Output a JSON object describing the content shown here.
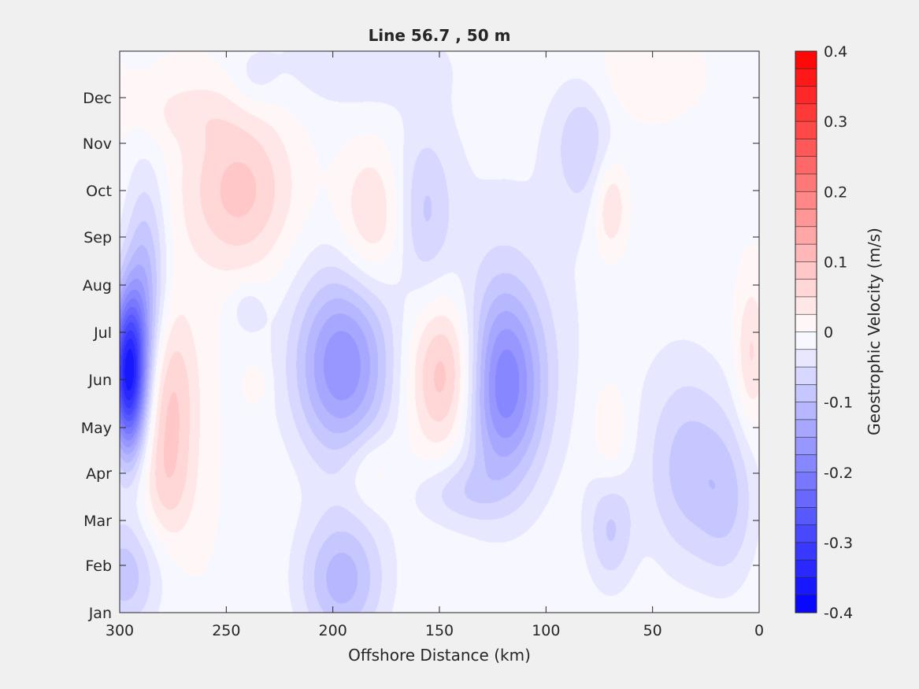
{
  "chart_data": {
    "type": "heatmap",
    "subtype": "filled-contour",
    "title": "Line 56.7 , 50 m",
    "xlabel": "Offshore Distance (km)",
    "ylabel": "",
    "xlim": [
      300,
      0
    ],
    "x_reversed": true,
    "x_ticks": [
      "300",
      "250",
      "200",
      "150",
      "100",
      "50",
      "0"
    ],
    "y_categories": [
      "Jan",
      "Feb",
      "Mar",
      "Apr",
      "May",
      "Jun",
      "Jul",
      "Aug",
      "Sep",
      "Oct",
      "Nov",
      "Dec"
    ],
    "y_ticks": [
      "Jan",
      "Feb",
      "Mar",
      "Apr",
      "May",
      "Jun",
      "Jul",
      "Aug",
      "Sep",
      "Oct",
      "Nov",
      "Dec"
    ],
    "colorbar": {
      "label": "Geostrophic Velocity (m/s)",
      "min": -0.4,
      "max": 0.4,
      "step": 0.025,
      "ticks": [
        "0.4",
        "0.3",
        "0.2",
        "0.1",
        "0",
        "-0.1",
        "-0.2",
        "-0.3",
        "-0.4"
      ],
      "colormap": "blue-white-red",
      "low_color": "#0000ff",
      "high_color": "#ff0000"
    },
    "features": [
      {
        "x": 296,
        "month": 5.1,
        "sx": 6,
        "smo": 1.2,
        "value": -0.35
      },
      {
        "x": 288,
        "month": 6.8,
        "sx": 7,
        "smo": 1.8,
        "value": -0.11
      },
      {
        "x": 278,
        "month": 4.6,
        "sx": 10,
        "smo": 1.4,
        "value": 0.09
      },
      {
        "x": 278,
        "month": 2.6,
        "sx": 9,
        "smo": 0.9,
        "value": 0.04
      },
      {
        "x": 244,
        "month": 9.0,
        "sx": 18,
        "smo": 1.2,
        "value": 0.09
      },
      {
        "x": 270,
        "month": 10.7,
        "sx": 20,
        "smo": 0.5,
        "value": 0.03
      },
      {
        "x": 298,
        "month": 0.8,
        "sx": 12,
        "smo": 0.9,
        "value": -0.09
      },
      {
        "x": 196,
        "month": 5.3,
        "sx": 16,
        "smo": 1.4,
        "value": -0.16
      },
      {
        "x": 146,
        "month": 5.1,
        "sx": 13,
        "smo": 1.2,
        "value": 0.13
      },
      {
        "x": 121,
        "month": 4.9,
        "sx": 14,
        "smo": 1.5,
        "value": -0.19
      },
      {
        "x": 182,
        "month": 8.4,
        "sx": 11,
        "smo": 1.1,
        "value": 0.07
      },
      {
        "x": 157,
        "month": 8.6,
        "sx": 9,
        "smo": 1.2,
        "value": -0.06
      },
      {
        "x": 196,
        "month": 0.7,
        "sx": 14,
        "smo": 1.0,
        "value": -0.11
      },
      {
        "x": 142,
        "month": 2.6,
        "sx": 14,
        "smo": 0.5,
        "value": -0.05
      },
      {
        "x": 70,
        "month": 1.8,
        "sx": 8,
        "smo": 0.9,
        "value": -0.07
      },
      {
        "x": 70,
        "month": 8.7,
        "sx": 6,
        "smo": 0.8,
        "value": 0.07
      },
      {
        "x": 70,
        "month": 3.9,
        "sx": 6,
        "smo": 0.8,
        "value": 0.04
      },
      {
        "x": 82,
        "month": 10.0,
        "sx": 10,
        "smo": 1.0,
        "value": -0.06
      },
      {
        "x": 34,
        "month": 3.1,
        "sx": 14,
        "smo": 1.5,
        "value": -0.08
      },
      {
        "x": 14,
        "month": 2.4,
        "sx": 10,
        "smo": 1.3,
        "value": -0.06
      },
      {
        "x": 4,
        "month": 5.5,
        "sx": 5,
        "smo": 1.1,
        "value": 0.06
      },
      {
        "x": 182,
        "month": 3.1,
        "sx": 9,
        "smo": 0.6,
        "value": 0.04
      },
      {
        "x": 237,
        "month": 11.4,
        "sx": 8,
        "smo": 0.5,
        "value": -0.03
      },
      {
        "x": 190,
        "month": 11.8,
        "sx": 28,
        "smo": 0.7,
        "value": -0.04
      },
      {
        "x": 58,
        "month": 11.4,
        "sx": 18,
        "smo": 0.7,
        "value": 0.03
      },
      {
        "x": 125,
        "month": 7.4,
        "sx": 70,
        "smo": 4.0,
        "value": -0.025
      },
      {
        "x": 240,
        "month": 6.5,
        "sx": 6,
        "smo": 0.4,
        "value": -0.04
      },
      {
        "x": 236,
        "month": 4.9,
        "sx": 4,
        "smo": 0.3,
        "value": 0.03
      }
    ]
  }
}
